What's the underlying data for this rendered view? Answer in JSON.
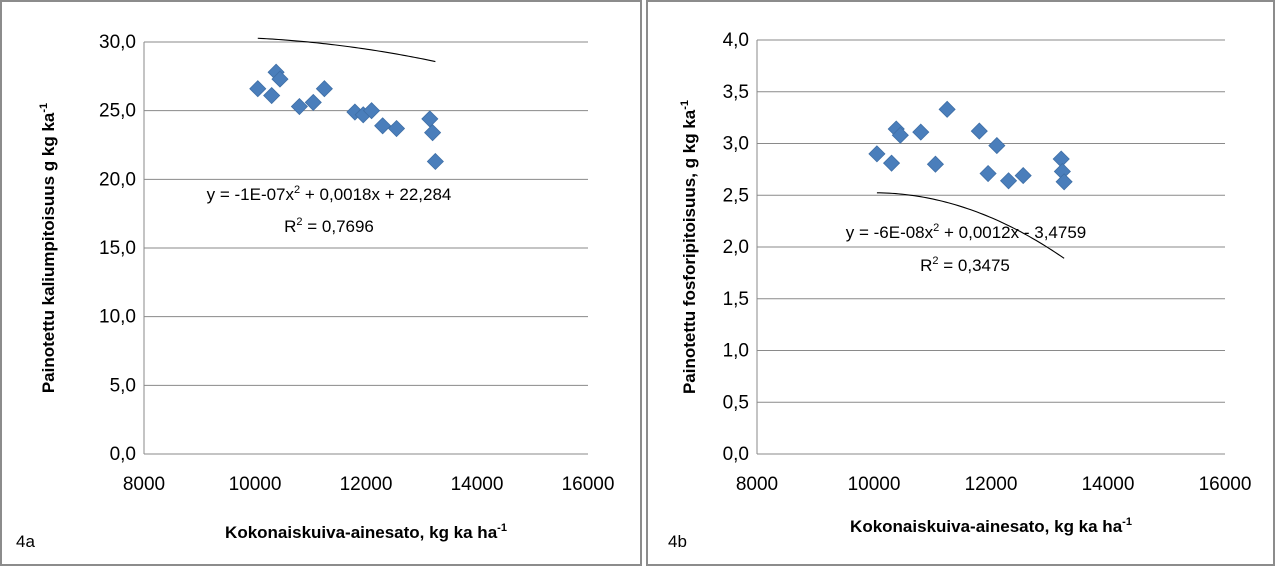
{
  "chart_data": [
    {
      "panel_label": "4a",
      "type": "scatter",
      "xlabel": "Kokonaiskuiva-ainesato, kg ka ha",
      "xlabel_sup": "-1",
      "ylabel": "Painotettu kaliumpitoisuus g kg ka",
      "ylabel_sup": "-1",
      "xlim": [
        8000,
        16000
      ],
      "ylim": [
        0,
        30
      ],
      "xticks": [
        8000,
        10000,
        12000,
        14000,
        16000
      ],
      "xtick_labels": [
        "8000",
        "10000",
        "12000",
        "14000",
        "16000"
      ],
      "yticks": [
        0,
        5,
        10,
        15,
        20,
        25,
        30
      ],
      "ytick_labels": [
        "0,0",
        "5,0",
        "10,0",
        "15,0",
        "20,0",
        "25,0",
        "30,0"
      ],
      "grid": "horizontal",
      "marker_color": "#4a7ebb",
      "series": [
        {
          "x": [
            10050,
            10300,
            10380,
            10450,
            10800,
            11050,
            11250,
            11800,
            11950,
            12100,
            12300,
            12550,
            13150,
            13200,
            13250
          ],
          "y": [
            26.6,
            26.1,
            27.8,
            27.3,
            25.3,
            25.6,
            26.6,
            24.9,
            24.7,
            25.0,
            23.9,
            23.7,
            24.4,
            23.4,
            21.3
          ]
        }
      ],
      "trendline": {
        "type": "poly2",
        "a": -1e-07,
        "b": 0.0018,
        "c": 22.284,
        "x_range": [
          10050,
          13250
        ]
      },
      "equation_text": "y = -1E-07x",
      "equation_sup": "2",
      "equation_rest": " + 0,0018x + 22,284",
      "r2_label": "R",
      "r2_sup": "2",
      "r2_rest": " = 0,7696"
    },
    {
      "panel_label": "4b",
      "type": "scatter",
      "xlabel": "Kokonaiskuiva-ainesato, kg ka ha",
      "xlabel_sup": "-1",
      "ylabel": "Painotettu fosforipitoisuus, g kg ka",
      "ylabel_sup": "-1",
      "xlim": [
        8000,
        16000
      ],
      "ylim": [
        0,
        4
      ],
      "xticks": [
        8000,
        10000,
        12000,
        14000,
        16000
      ],
      "xtick_labels": [
        "8000",
        "10000",
        "12000",
        "14000",
        "16000"
      ],
      "yticks": [
        0,
        0.5,
        1,
        1.5,
        2,
        2.5,
        3,
        3.5,
        4
      ],
      "ytick_labels": [
        "0,0",
        "0,5",
        "1,0",
        "1,5",
        "2,0",
        "2,5",
        "3,0",
        "3,5",
        "4,0"
      ],
      "grid": "horizontal",
      "marker_color": "#4a7ebb",
      "series": [
        {
          "x": [
            10050,
            10300,
            10380,
            10450,
            10800,
            11050,
            11250,
            11800,
            11950,
            12100,
            12300,
            12550,
            13200,
            13220,
            13250
          ],
          "y": [
            2.9,
            2.81,
            3.14,
            3.08,
            3.11,
            2.8,
            3.33,
            3.12,
            2.71,
            2.98,
            2.64,
            2.69,
            2.85,
            2.73,
            2.63
          ]
        }
      ],
      "trendline": {
        "type": "poly2",
        "a": -6e-08,
        "b": 0.0012,
        "c": -3.4759,
        "x_range": [
          10050,
          13250
        ]
      },
      "equation_text": "y = -6E-08x",
      "equation_sup": "2",
      "equation_rest": " + 0,0012x - 3,4759",
      "r2_label": "R",
      "r2_sup": "2",
      "r2_rest": " = 0,3475"
    }
  ]
}
